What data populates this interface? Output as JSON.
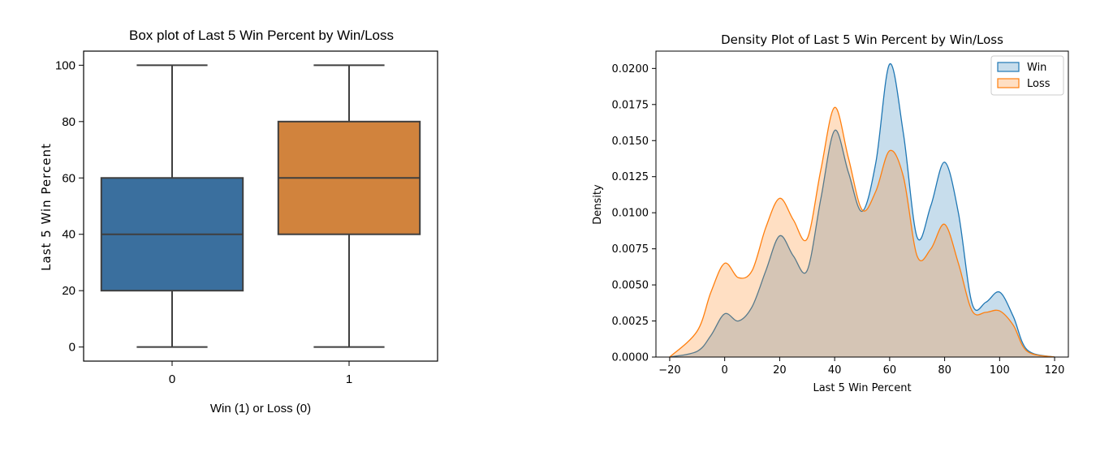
{
  "chart_data": [
    {
      "type": "box",
      "title": "Box plot of Last 5 Win Percent by Win/Loss",
      "xlabel": "Win (1) or Loss (0)",
      "ylabel": "Last 5 Win Percent",
      "categories": [
        "0",
        "1"
      ],
      "ylim": [
        -5,
        105
      ],
      "yticks": [
        0,
        20,
        40,
        60,
        80,
        100
      ],
      "grid": false,
      "boxes": [
        {
          "category": "0",
          "whisker_low": 0,
          "q1": 20,
          "median": 40,
          "q3": 60,
          "whisker_high": 100,
          "color": "#3a6f9e"
        },
        {
          "category": "1",
          "whisker_low": 0,
          "q1": 40,
          "median": 60,
          "q3": 80,
          "whisker_high": 100,
          "color": "#d1833d"
        }
      ]
    },
    {
      "type": "area",
      "subtype": "kde-density",
      "title": "Density Plot of Last 5 Win Percent by Win/Loss",
      "xlabel": "Last 5 Win Percent",
      "ylabel": "Density",
      "xlim": [
        -25,
        125
      ],
      "ylim": [
        0,
        0.0212
      ],
      "xticks": [
        -20,
        0,
        20,
        40,
        60,
        80,
        100,
        120
      ],
      "yticks": [
        0.0,
        0.0025,
        0.005,
        0.0075,
        0.01,
        0.0125,
        0.015,
        0.0175,
        0.02
      ],
      "ytick_labels": [
        "0.0000",
        "0.0025",
        "0.0050",
        "0.0075",
        "0.0100",
        "0.0125",
        "0.0150",
        "0.0175",
        "0.0200"
      ],
      "xtick_labels": [
        "−20",
        "0",
        "20",
        "40",
        "60",
        "80",
        "100",
        "120"
      ],
      "legend_position": "top-right",
      "grid": false,
      "series": [
        {
          "name": "Win",
          "color": "#1f77b4",
          "x": [
            -20,
            -10,
            -5,
            0,
            5,
            10,
            15,
            20,
            25,
            30,
            35,
            40,
            45,
            50,
            55,
            60,
            65,
            70,
            75,
            80,
            85,
            90,
            95,
            100,
            105,
            110,
            120
          ],
          "y": [
            0.0,
            0.0004,
            0.0015,
            0.003,
            0.0025,
            0.0035,
            0.006,
            0.0084,
            0.007,
            0.006,
            0.011,
            0.0157,
            0.0128,
            0.0101,
            0.0135,
            0.0203,
            0.0155,
            0.0083,
            0.0105,
            0.0135,
            0.01,
            0.0037,
            0.0038,
            0.0045,
            0.0028,
            0.0005,
            0.0
          ]
        },
        {
          "name": "Loss",
          "color": "#ff7f0e",
          "x": [
            -20,
            -10,
            -5,
            0,
            5,
            10,
            15,
            20,
            25,
            30,
            35,
            40,
            45,
            50,
            55,
            60,
            65,
            70,
            75,
            80,
            85,
            90,
            95,
            100,
            105,
            110,
            120
          ],
          "y": [
            0.0,
            0.0018,
            0.0045,
            0.0065,
            0.0055,
            0.006,
            0.009,
            0.011,
            0.0095,
            0.0082,
            0.013,
            0.0173,
            0.0138,
            0.0102,
            0.0115,
            0.0143,
            0.0125,
            0.007,
            0.0075,
            0.0092,
            0.0065,
            0.0032,
            0.0031,
            0.0032,
            0.0022,
            0.0004,
            0.0
          ]
        }
      ]
    }
  ]
}
